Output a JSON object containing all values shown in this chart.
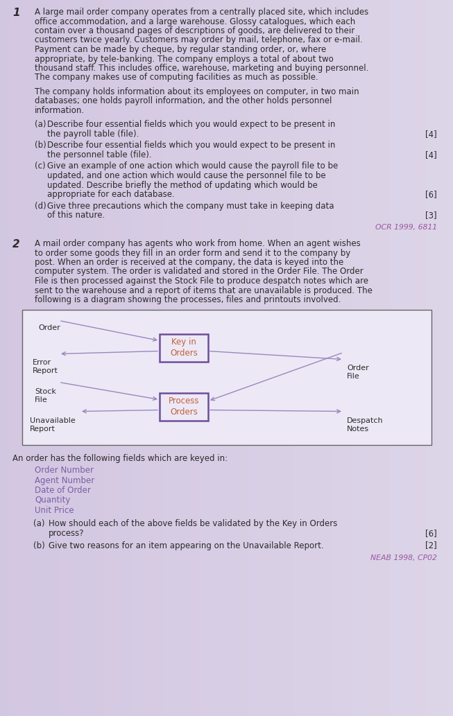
{
  "bg_color": "#ddd5e8",
  "text_color": "#2a2a2a",
  "purple_color": "#7b5ea7",
  "orange_color": "#c0623a",
  "arrow_color": "#9988bb",
  "box_border_color": "#6b4e9a",
  "ref_color": "#9958a0",
  "q1_number": "1",
  "q1_para1_lines": [
    "A large mail order company operates from a centrally placed site, which includes",
    "office accommodation, and a large warehouse. Glossy catalogues, which each",
    "contain over a thousand pages of descriptions of goods, are delivered to their",
    "customers twice yearly. Customers may order by mail, telephone, fax or e-mail.",
    "Payment can be made by cheque, by regular standing order, or, where",
    "appropriate, by tele-banking. The company employs a total of about two",
    "thousand staff. This includes office, warehouse, marketing and buying personnel.",
    "The company makes use of computing facilities as much as possible."
  ],
  "q1_para2_lines": [
    "The company holds information about its employees on computer, in two main",
    "databases; one holds payroll information, and the other holds personnel",
    "information."
  ],
  "q1_parts": [
    {
      "label": "(a)",
      "lines": [
        "Describe four essential fields which you would expect to be present in",
        "the payroll table (file)."
      ],
      "marks": "[4]",
      "mark_line": 1
    },
    {
      "label": "(b)",
      "lines": [
        "Describe four essential fields which you would expect to be present in",
        "the personnel table (file)."
      ],
      "marks": "[4]",
      "mark_line": 1
    },
    {
      "label": "(c)",
      "lines": [
        "Give an example of one action which would cause the payroll file to be",
        "updated, and one action which would cause the personnel file to be",
        "updated. Describe briefly the method of updating which would be",
        "appropriate for each database."
      ],
      "marks": "[6]",
      "mark_line": 3
    },
    {
      "label": "(d)",
      "lines": [
        "Give three precautions which the company must take in keeping data",
        "of this nature."
      ],
      "marks": "[3]",
      "mark_line": 1
    }
  ],
  "q1_ref": "OCR 1999, 6811",
  "q2_number": "2",
  "q2_para_lines": [
    "A mail order company has agents who work from home. When an agent wishes",
    "to order some goods they fill in an order form and send it to the company by",
    "post. When an order is received at the company, the data is keyed into the",
    "computer system. The order is validated and stored in the Order File. The Order",
    "File is then processed against the Stock File to produce despatch notes which are",
    "sent to the warehouse and a report of items that are unavailable is produced. The",
    "following is a diagram showing the processes, files and printouts involved."
  ],
  "fields_intro": "An order has the following fields which are keyed in:",
  "fields_list": [
    "Order Number",
    "Agent Number",
    "Date of Order",
    "Quantity",
    "Unit Price"
  ],
  "q2_parts": [
    {
      "label": "(a)",
      "lines": [
        "How should each of the above fields be validated by the Key in Orders",
        "process?"
      ],
      "marks": "[6]",
      "mark_line": 1
    },
    {
      "label": "(b)",
      "lines": [
        "Give two reasons for an item appearing on the Unavailable Report."
      ],
      "marks": "[2]",
      "mark_line": 0
    }
  ],
  "q2_ref": "NEAB 1998, CP02"
}
